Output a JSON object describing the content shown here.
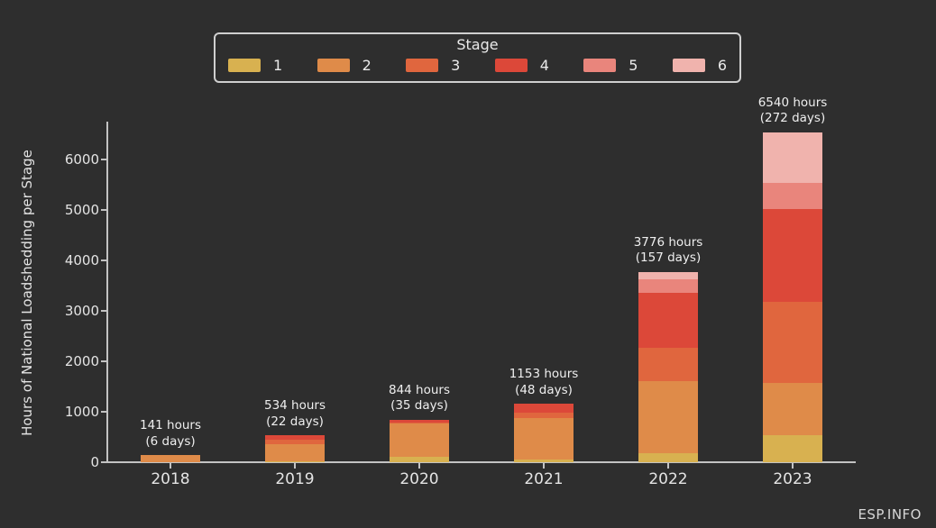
{
  "watermark": "ESP.INFO",
  "colors": {
    "background": "#2e2e2e",
    "axis": "#c3c3c3",
    "text": "#e8e8e8",
    "stage1": "#d8b150",
    "stage2": "#df8b49",
    "stage3": "#e0663e",
    "stage4": "#dc4839",
    "stage5": "#e9857c",
    "stage6": "#f0b3ad"
  },
  "chart_data": {
    "type": "bar",
    "stacked": true,
    "title": "",
    "xlabel": "",
    "ylabel": "Hours of National Loadshedding per Stage",
    "ylim": [
      0,
      6750
    ],
    "yticks": [
      0,
      1000,
      2000,
      3000,
      4000,
      5000,
      6000
    ],
    "grid": false,
    "categories": [
      "2018",
      "2019",
      "2020",
      "2021",
      "2022",
      "2023"
    ],
    "legend": {
      "title": "Stage",
      "position": "top-center",
      "entries": [
        "1",
        "2",
        "3",
        "4",
        "5",
        "6"
      ]
    },
    "series": [
      {
        "name": "1",
        "color": "#d8b150",
        "values": [
          0,
          15,
          110,
          50,
          185,
          540
        ]
      },
      {
        "name": "2",
        "color": "#df8b49",
        "values": [
          141,
          350,
          655,
          820,
          1430,
          1030
        ]
      },
      {
        "name": "3",
        "color": "#e0663e",
        "values": [
          0,
          90,
          15,
          120,
          660,
          1600
        ]
      },
      {
        "name": "4",
        "color": "#dc4839",
        "values": [
          0,
          79,
          64,
          163,
          1075,
          1850
        ]
      },
      {
        "name": "5",
        "color": "#e9857c",
        "values": [
          0,
          0,
          0,
          0,
          275,
          515
        ]
      },
      {
        "name": "6",
        "color": "#f0b3ad",
        "values": [
          0,
          0,
          0,
          0,
          151,
          1005
        ]
      }
    ],
    "totals": [
      141,
      534,
      844,
      1153,
      3776,
      6540
    ],
    "annotations": [
      "141 hours\n(6 days)",
      "534 hours\n(22 days)",
      "844 hours\n(35 days)",
      "1153 hours\n(48 days)",
      "3776 hours\n(157 days)",
      "6540 hours\n(272 days)"
    ]
  }
}
